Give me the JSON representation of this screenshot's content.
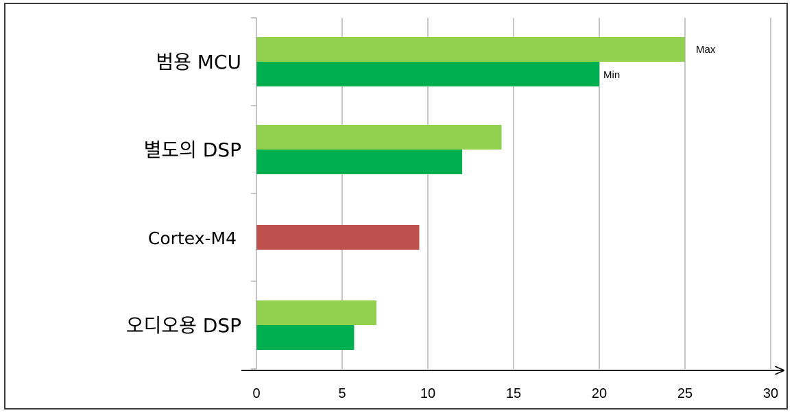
{
  "chart_data": {
    "type": "bar",
    "orientation": "horizontal",
    "categories": [
      "범용 MCU",
      "별도의 DSP",
      "Cortex-M4",
      "오디오용 DSP"
    ],
    "series": [
      {
        "name": "Max",
        "color": "#92d050",
        "values": [
          25,
          14.3,
          null,
          7
        ]
      },
      {
        "name": "Min",
        "color": "#00b050",
        "values": [
          20,
          12,
          null,
          5.7
        ]
      },
      {
        "color": "#c0504d",
        "values": [
          null,
          null,
          9.5,
          null
        ]
      }
    ],
    "xlim": [
      0,
      30
    ],
    "xticks": [
      "0",
      "5",
      "10",
      "15",
      "20",
      "25",
      "30"
    ],
    "grid": true,
    "annotations": {
      "max_label": "Max",
      "min_label": "Min"
    },
    "title": "",
    "xlabel": "",
    "ylabel": ""
  }
}
